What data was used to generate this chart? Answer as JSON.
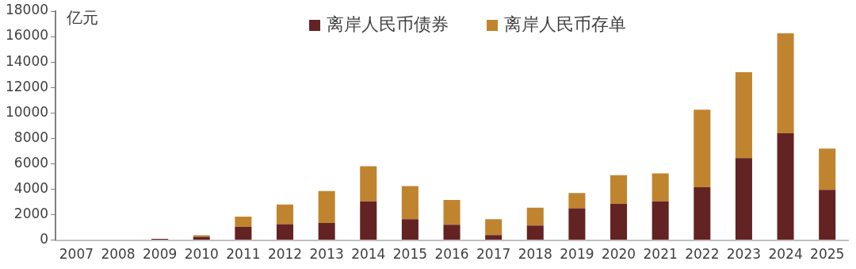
{
  "chart_data": {
    "type": "bar",
    "stacked": true,
    "ylabel": "亿元",
    "categories": [
      "2007",
      "2008",
      "2009",
      "2010",
      "2011",
      "2012",
      "2013",
      "2014",
      "2015",
      "2016",
      "2017",
      "2018",
      "2019",
      "2020",
      "2021",
      "2022",
      "2023",
      "2024",
      "2025"
    ],
    "series": [
      {
        "name": "离岸人民币债券",
        "color": "#632323",
        "values": [
          0,
          null,
          100,
          250,
          1050,
          1250,
          1350,
          3050,
          1650,
          1200,
          400,
          1150,
          2500,
          2850,
          3050,
          4150,
          6450,
          8400,
          3950
        ]
      },
      {
        "name": "离岸人民币存单",
        "color": "#c0842f",
        "values": [
          0,
          0,
          0,
          130,
          800,
          1550,
          2500,
          2750,
          2600,
          1950,
          1250,
          1400,
          1200,
          2250,
          2200,
          6100,
          6750,
          7850,
          3250
        ]
      }
    ],
    "ylim": [
      0,
      18000
    ],
    "yticks": [
      0,
      2000,
      4000,
      6000,
      8000,
      10000,
      12000,
      14000,
      16000,
      18000
    ],
    "grid": false,
    "legend": "top"
  }
}
